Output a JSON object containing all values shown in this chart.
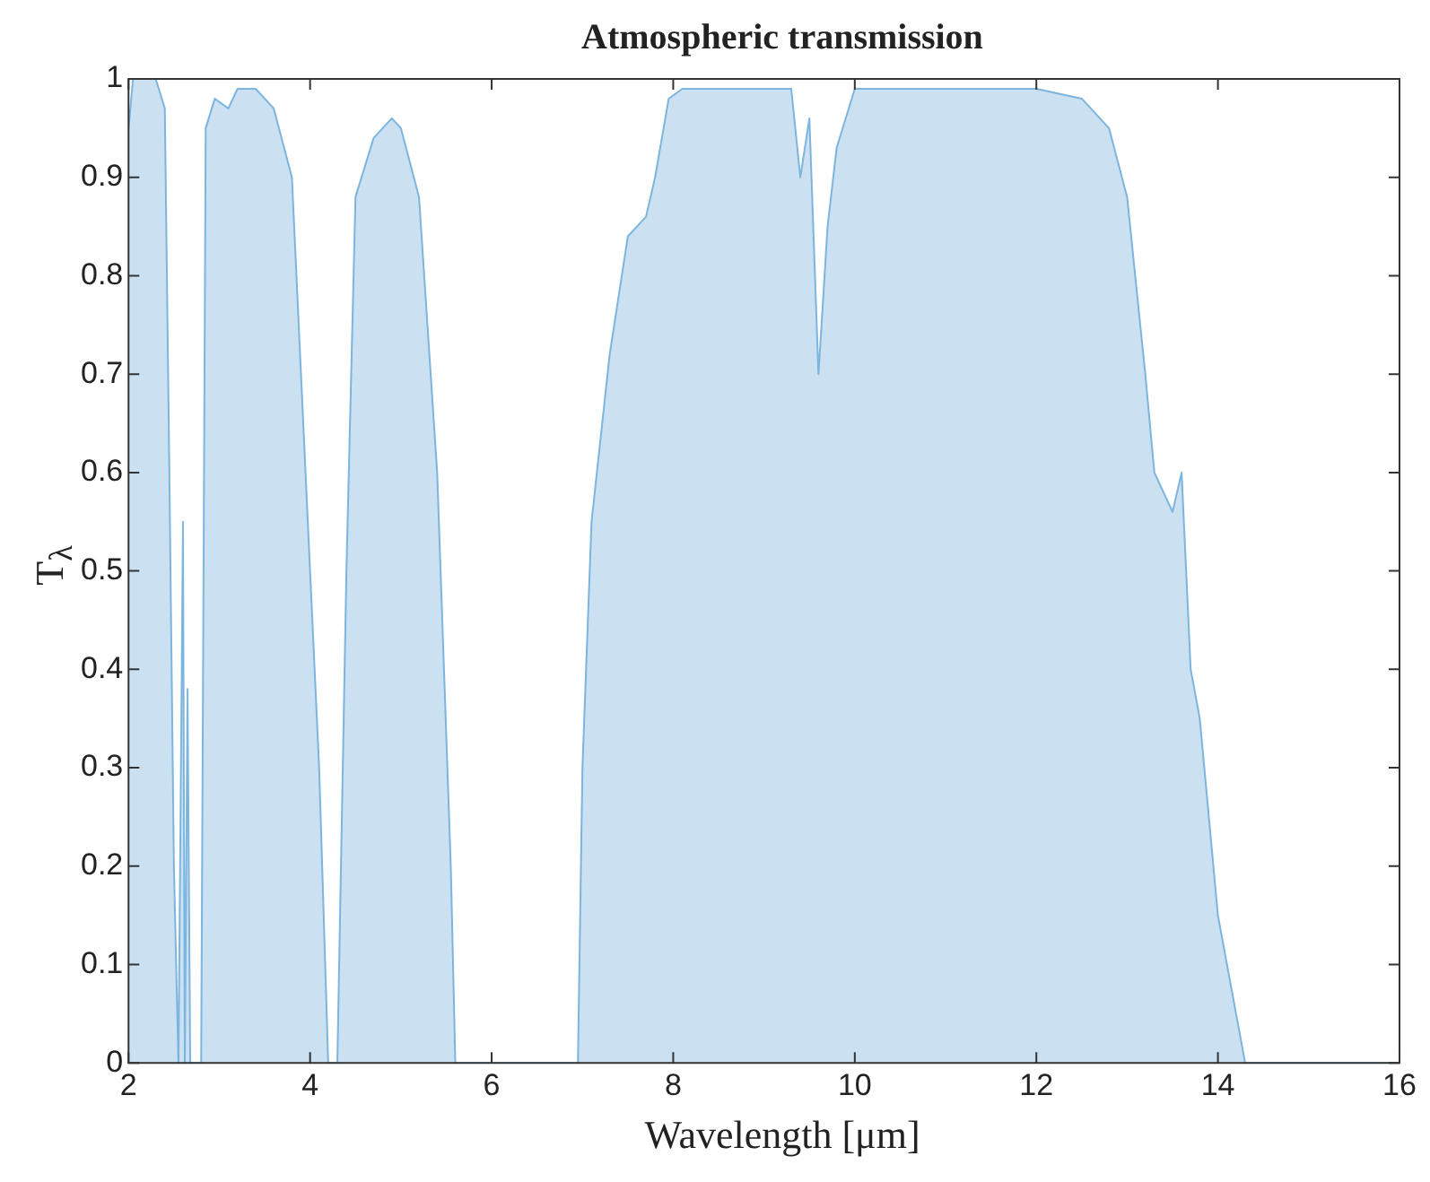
{
  "chart_data": {
    "type": "area",
    "title": "Atmospheric transmission",
    "xlabel": "Wavelength [μm]",
    "ylabel": "T$_{λ}$",
    "xlim": [
      2,
      16
    ],
    "xticks": [
      2,
      4,
      6,
      8,
      10,
      12,
      14,
      16
    ],
    "ylim": [
      0,
      1
    ],
    "yticks": [
      0,
      0.1,
      0.2,
      0.3,
      0.4,
      0.5,
      0.6,
      0.7,
      0.8,
      0.9,
      1
    ],
    "grid": false,
    "legend": false,
    "series": [
      {
        "color": "#6aaad9",
        "x": [
          2.0,
          2.05,
          2.3,
          2.4,
          2.45,
          2.5,
          2.55,
          2.6,
          2.62,
          2.65,
          2.68,
          2.7,
          2.8,
          2.85,
          2.95,
          3.1,
          3.2,
          3.4,
          3.6,
          3.8,
          3.95,
          4.1,
          4.2,
          4.3,
          4.4,
          4.5,
          4.7,
          4.9,
          5.0,
          5.2,
          5.4,
          5.55,
          5.6,
          6.0,
          6.95,
          7.0,
          7.1,
          7.3,
          7.5,
          7.7,
          7.8,
          7.95,
          8.1,
          8.5,
          9.0,
          9.3,
          9.4,
          9.5,
          9.6,
          9.7,
          9.8,
          10.0,
          11.0,
          12.0,
          12.5,
          12.8,
          13.0,
          13.2,
          13.3,
          13.5,
          13.6,
          13.7,
          13.8,
          13.9,
          14.0,
          14.2,
          14.3,
          16.0
        ],
        "values": [
          0.95,
          1.0,
          1.0,
          0.97,
          0.6,
          0.2,
          0.0,
          0.55,
          0.0,
          0.38,
          0.0,
          0.0,
          0.0,
          0.95,
          0.98,
          0.97,
          0.99,
          0.99,
          0.97,
          0.9,
          0.6,
          0.3,
          0.0,
          0.0,
          0.5,
          0.88,
          0.94,
          0.96,
          0.95,
          0.88,
          0.6,
          0.2,
          0.0,
          0.0,
          0.0,
          0.3,
          0.55,
          0.72,
          0.84,
          0.86,
          0.9,
          0.98,
          0.99,
          0.99,
          0.99,
          0.99,
          0.9,
          0.96,
          0.7,
          0.85,
          0.93,
          0.99,
          0.99,
          0.99,
          0.98,
          0.95,
          0.88,
          0.7,
          0.6,
          0.56,
          0.6,
          0.4,
          0.35,
          0.25,
          0.15,
          0.05,
          0.0,
          0.0
        ]
      }
    ]
  }
}
